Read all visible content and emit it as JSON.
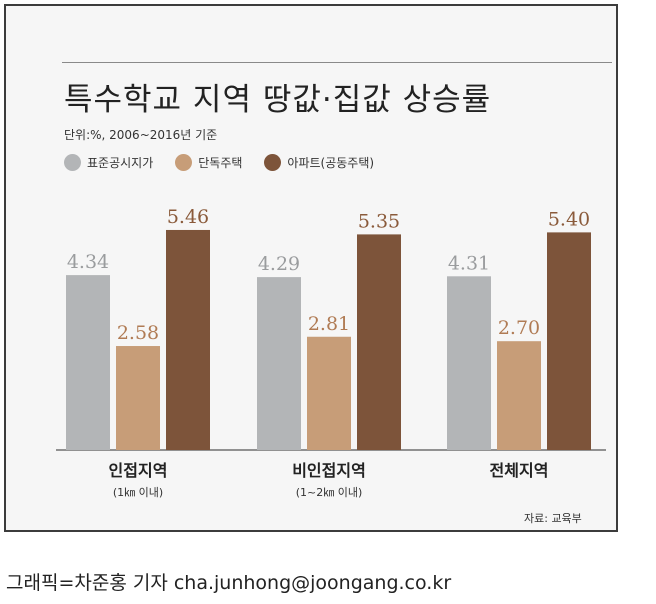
{
  "chart_data": {
    "type": "bar",
    "title": "특수학교 지역 땅값·집값 상승률",
    "subtitle": "단위:%, 2006~2016년 기준",
    "categories": [
      "인접지역",
      "비인접지역",
      "전체지역"
    ],
    "category_sublabels": [
      "(1㎞ 이내)",
      "(1~2㎞ 이내)",
      ""
    ],
    "series": [
      {
        "name": "표준공시지가",
        "values": [
          4.34,
          4.29,
          4.31
        ],
        "color": "#b3b5b7",
        "label_color": "#9a9c9e"
      },
      {
        "name": "단독주택",
        "values": [
          2.58,
          2.81,
          2.7
        ],
        "color": "#c79d78",
        "label_color": "#b07b54"
      },
      {
        "name": "아파트(공동주택)",
        "values": [
          5.46,
          5.35,
          5.4
        ],
        "color": "#7d543a",
        "label_color": "#8a5a3a"
      }
    ],
    "ylim": [
      0,
      6
    ],
    "grid": false,
    "legend": "top-left",
    "source": "자료: 교육부"
  },
  "credit": "그래픽=차준홍 기자 cha.junhong@joongang.co.kr"
}
